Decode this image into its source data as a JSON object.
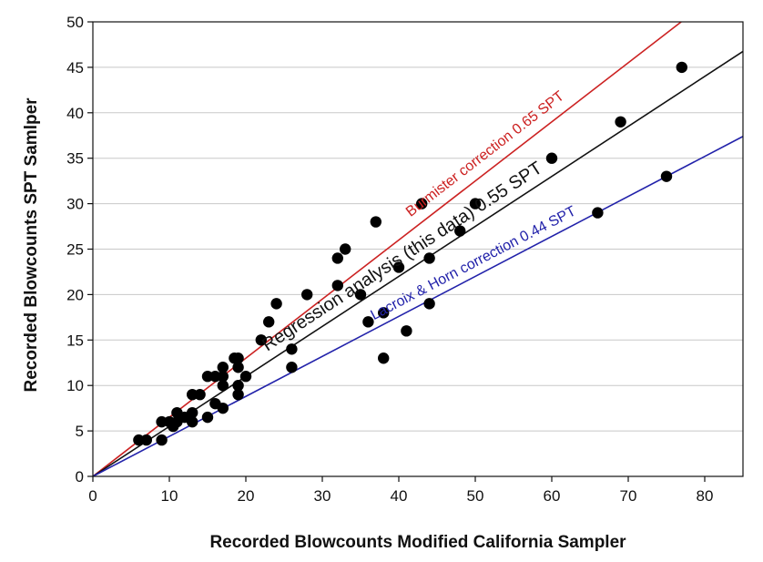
{
  "chart_data": {
    "type": "scatter",
    "title": "",
    "xlabel": "Recorded Blowcounts Modified California Sampler",
    "ylabel": "Recorded Blowcounts SPT Samlper",
    "xlim": [
      0,
      85
    ],
    "ylim": [
      0,
      50
    ],
    "x_ticks": [
      "0",
      "10",
      "20",
      "30",
      "40",
      "50",
      "60",
      "70",
      "80"
    ],
    "y_ticks": [
      "0",
      "5",
      "10",
      "15",
      "20",
      "25",
      "30",
      "35",
      "40",
      "45",
      "50"
    ],
    "grid": "horizontal",
    "points": [
      [
        6,
        4
      ],
      [
        7,
        4
      ],
      [
        9,
        4
      ],
      [
        9,
        6
      ],
      [
        10,
        6
      ],
      [
        10.5,
        5.5
      ],
      [
        11,
        6
      ],
      [
        11,
        7
      ],
      [
        12,
        6.5
      ],
      [
        13,
        6
      ],
      [
        13,
        7
      ],
      [
        13,
        9
      ],
      [
        14,
        9
      ],
      [
        15,
        6.5
      ],
      [
        15,
        11
      ],
      [
        16,
        8
      ],
      [
        16,
        11
      ],
      [
        17,
        7.5
      ],
      [
        17,
        10
      ],
      [
        17,
        11
      ],
      [
        17,
        12
      ],
      [
        18.5,
        13
      ],
      [
        19,
        9
      ],
      [
        19,
        10
      ],
      [
        19,
        12
      ],
      [
        19,
        13
      ],
      [
        20,
        11
      ],
      [
        22,
        15
      ],
      [
        23,
        17
      ],
      [
        24,
        19
      ],
      [
        26,
        12
      ],
      [
        26,
        14
      ],
      [
        28,
        20
      ],
      [
        32,
        21
      ],
      [
        32,
        24
      ],
      [
        33,
        25
      ],
      [
        35,
        20
      ],
      [
        36,
        17
      ],
      [
        37,
        28
      ],
      [
        38,
        13
      ],
      [
        38,
        18
      ],
      [
        40,
        23
      ],
      [
        41,
        16
      ],
      [
        43,
        30
      ],
      [
        44,
        19
      ],
      [
        44,
        24
      ],
      [
        48,
        27
      ],
      [
        50,
        30
      ],
      [
        60,
        35
      ],
      [
        66,
        29
      ],
      [
        69,
        39
      ],
      [
        75,
        33
      ],
      [
        77,
        45
      ]
    ],
    "lines": [
      {
        "name": "Burmister correction 0.65 SPT",
        "slope": 0.65,
        "color": "#cc2222"
      },
      {
        "name": "Regression analysis (this data) 0.55 SPT",
        "slope": 0.55,
        "color": "#111111"
      },
      {
        "name": "Lacroix & Horn correction 0.44 SPT",
        "slope": 0.44,
        "color": "#2222aa"
      }
    ]
  }
}
